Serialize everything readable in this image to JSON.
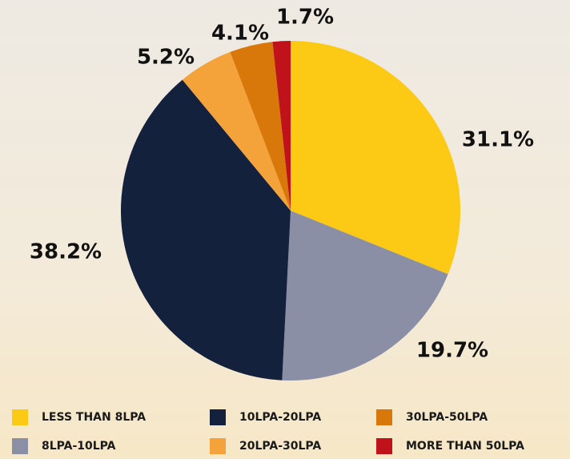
{
  "chart_data": {
    "type": "pie",
    "categories": [
      "LESS THAN 8LPA",
      "8LPA-10LPA",
      "10LPA-20LPA",
      "20LPA-30LPA",
      "30LPA-50LPA",
      "MORE THAN 50LPA"
    ],
    "values": [
      31.1,
      19.7,
      38.2,
      5.2,
      4.1,
      1.7
    ],
    "value_labels": [
      "31.1%",
      "19.7%",
      "38.2%",
      "5.2%",
      "4.1%",
      "1.7%"
    ],
    "colors": [
      "#fcc914",
      "#8a8fa5",
      "#14213d",
      "#f4a23a",
      "#d9780a",
      "#c0121a"
    ],
    "legend": "bottom"
  }
}
